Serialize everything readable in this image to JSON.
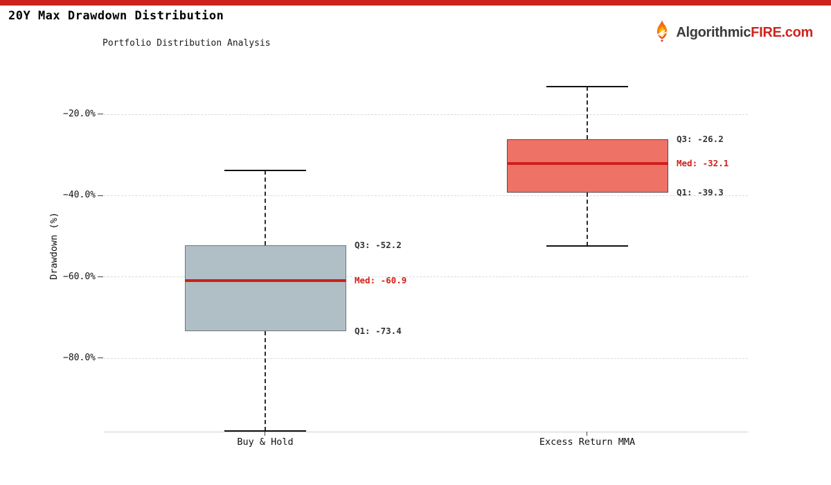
{
  "page": {
    "title": "20Y Max Drawdown Distribution",
    "accent_red": "#CB241C",
    "logo": {
      "icon": "fire-icon",
      "text_dark": "Algorithmic",
      "text_red": "FIRE.com"
    }
  },
  "chart_data": {
    "type": "boxplot",
    "title": "20Y Max Drawdown Distribution",
    "subtitle": "Portfolio Distribution Analysis",
    "ylabel": "Drawdown (%)",
    "xlabel": "",
    "categories": [
      "Buy & Hold",
      "Excess Return MMA"
    ],
    "ylim": [
      -98,
      -8
    ],
    "grid": "horizontal dashed",
    "legend": "none",
    "yticks": [
      {
        "value": -20,
        "label": "−20.0%"
      },
      {
        "value": -40,
        "label": "−40.0%"
      },
      {
        "value": -60,
        "label": "−60.0%"
      },
      {
        "value": -80,
        "label": "−80.0%"
      }
    ],
    "median_color": "#CE2019",
    "series": [
      {
        "name": "Buy & Hold",
        "whisker_high": -33.8,
        "q3": -52.2,
        "median": -60.9,
        "q1": -73.4,
        "whisker_low": -97.9,
        "box_fill": "#B0BEC5",
        "box_border": "#6E777C",
        "labels": {
          "q3": "Q3: -52.2",
          "med": "Med: -60.9",
          "q1": "Q1: -73.4"
        }
      },
      {
        "name": "Excess Return MMA",
        "whisker_high": -13.2,
        "q3": -26.2,
        "median": -32.1,
        "q1": -39.3,
        "whisker_low": -52.4,
        "box_fill": "#EE7266",
        "box_border": "#59484E",
        "labels": {
          "q3": "Q3: -26.2",
          "med": "Med: -32.1",
          "q1": "Q1: -39.3"
        }
      }
    ]
  }
}
